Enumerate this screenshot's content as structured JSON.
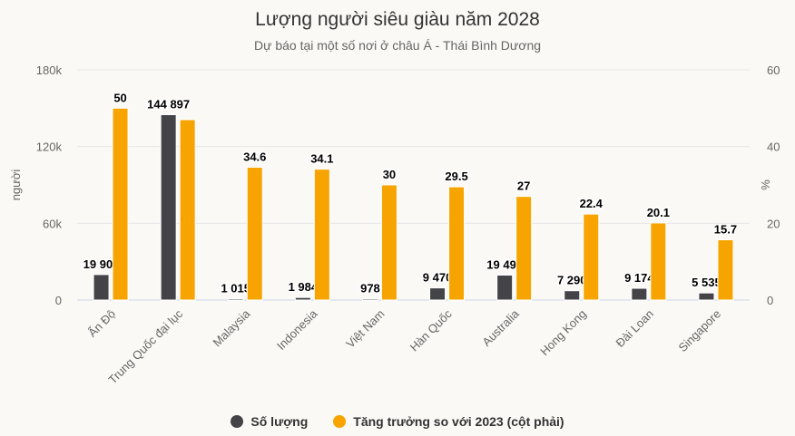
{
  "chart_data": {
    "type": "bar",
    "title": "Lượng người siêu giàu năm 2028",
    "subtitle": "Dự báo tại một số nơi ở châu Á - Thái Bình Dương",
    "categories": [
      "Ấn Độ",
      "Trung Quốc đại lục",
      "Malaysia",
      "Indonesia",
      "Việt Nam",
      "Hàn Quốc",
      "Australia",
      "Hong Kong",
      "Đài Loan",
      "Singapore"
    ],
    "series": [
      {
        "name": "Số lượng",
        "axis": "left",
        "color": "#434348",
        "values": [
          19908,
          144897,
          1015,
          1984,
          978,
          9470,
          19491,
          7290,
          9174,
          5535
        ],
        "labels": [
          "19 908",
          "144 897",
          "1 015",
          "1 984",
          "978",
          "9 470",
          "19 491",
          "7 290",
          "9 174",
          "5 535"
        ]
      },
      {
        "name": "Tăng trưởng so với 2023 (cột phải)",
        "axis": "right",
        "color": "#f7a400",
        "values": [
          50,
          47,
          34.6,
          34.1,
          30,
          29.5,
          27,
          22.4,
          20.1,
          15.7
        ],
        "labels": [
          "50",
          null,
          "34.6",
          "34.1",
          "30",
          "29.5",
          "27",
          "22.4",
          "20.1",
          "15.7"
        ]
      }
    ],
    "ylabel": "người",
    "ylim": [
      0,
      180000
    ],
    "yticks": [
      "0",
      "60k",
      "120k",
      "180k"
    ],
    "y2label": "%",
    "y2lim": [
      0,
      60
    ],
    "y2ticks": [
      "0",
      "20",
      "40",
      "60"
    ],
    "grid": true,
    "legend": "bottom"
  }
}
